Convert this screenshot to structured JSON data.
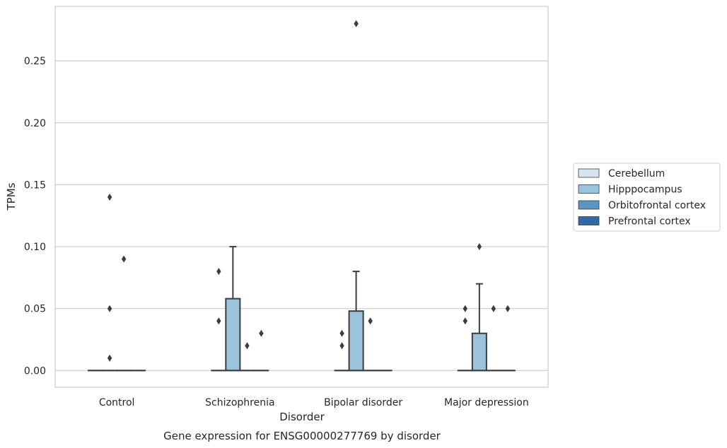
{
  "chart_data": {
    "type": "boxplot",
    "title": "Gene expression for ENSG00000277769 by disorder",
    "xlabel": "Disorder",
    "ylabel": "TPMs",
    "ylim": [
      -0.0135,
      0.294
    ],
    "yticks": [
      "0.00",
      "0.05",
      "0.10",
      "0.15",
      "0.20",
      "0.25"
    ],
    "ytick_values": [
      0,
      0.05,
      0.1,
      0.15,
      0.2,
      0.25
    ],
    "grid": "horizontal",
    "legend_position": "right",
    "categories": [
      "Control",
      "Schizophrenia",
      "Bipolar disorder",
      "Major depression"
    ],
    "series": [
      {
        "name": "Cerebellum",
        "color": "#d6e4f0",
        "boxes": [
          {
            "category": "Control",
            "min": 0,
            "q1": 0,
            "median": 0,
            "q3": 0,
            "max": 0,
            "outliers": []
          },
          {
            "category": "Schizophrenia",
            "min": 0,
            "q1": 0,
            "median": 0,
            "q3": 0,
            "max": 0,
            "outliers": [
              0.04,
              0.08
            ]
          },
          {
            "category": "Bipolar disorder",
            "min": 0,
            "q1": 0,
            "median": 0,
            "q3": 0,
            "max": 0,
            "outliers": [
              0.02,
              0.03
            ]
          },
          {
            "category": "Major depression",
            "min": 0,
            "q1": 0,
            "median": 0,
            "q3": 0,
            "max": 0,
            "outliers": [
              0.04,
              0.05
            ]
          }
        ]
      },
      {
        "name": "Hipppocampus",
        "color": "#9bc3db",
        "boxes": [
          {
            "category": "Control",
            "min": 0,
            "q1": 0,
            "median": 0,
            "q3": 0,
            "max": 0,
            "outliers": [
              0.01,
              0.05,
              0.14
            ]
          },
          {
            "category": "Schizophrenia",
            "min": 0,
            "q1": 0,
            "median": 0,
            "q3": 0.058,
            "max": 0.1,
            "outliers": []
          },
          {
            "category": "Bipolar disorder",
            "min": 0,
            "q1": 0,
            "median": 0,
            "q3": 0.048,
            "max": 0.08,
            "outliers": [
              0.28
            ]
          },
          {
            "category": "Major depression",
            "min": 0,
            "q1": 0,
            "median": 0,
            "q3": 0.03,
            "max": 0.07,
            "outliers": [
              0.1
            ]
          }
        ]
      },
      {
        "name": "Orbitofrontal cortex",
        "color": "#5b96c2",
        "boxes": [
          {
            "category": "Control",
            "min": 0,
            "q1": 0,
            "median": 0,
            "q3": 0,
            "max": 0,
            "outliers": [
              0.09
            ]
          },
          {
            "category": "Schizophrenia",
            "min": 0,
            "q1": 0,
            "median": 0,
            "q3": 0,
            "max": 0,
            "outliers": [
              0.02
            ]
          },
          {
            "category": "Bipolar disorder",
            "min": 0,
            "q1": 0,
            "median": 0,
            "q3": 0,
            "max": 0,
            "outliers": [
              0.04
            ]
          },
          {
            "category": "Major depression",
            "min": 0,
            "q1": 0,
            "median": 0,
            "q3": 0,
            "max": 0,
            "outliers": [
              0.05
            ]
          }
        ]
      },
      {
        "name": "Prefrontal cortex",
        "color": "#2b6aa6",
        "boxes": [
          {
            "category": "Control",
            "min": 0,
            "q1": 0,
            "median": 0,
            "q3": 0,
            "max": 0,
            "outliers": []
          },
          {
            "category": "Schizophrenia",
            "min": 0,
            "q1": 0,
            "median": 0,
            "q3": 0,
            "max": 0,
            "outliers": [
              0.03
            ]
          },
          {
            "category": "Bipolar disorder",
            "min": 0,
            "q1": 0,
            "median": 0,
            "q3": 0,
            "max": 0,
            "outliers": []
          },
          {
            "category": "Major depression",
            "min": 0,
            "q1": 0,
            "median": 0,
            "q3": 0,
            "max": 0,
            "outliers": [
              0.05
            ]
          }
        ]
      }
    ]
  }
}
